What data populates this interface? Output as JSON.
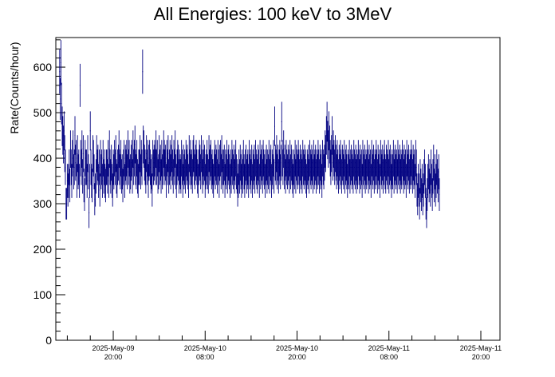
{
  "chart_data": {
    "type": "scatter",
    "style": "error-bars",
    "title": "All Energies:  100 keV to 3MeV",
    "xlabel": "",
    "ylabel": "Rate(Counts/hour)",
    "ylim": [
      0,
      665
    ],
    "yticks": [
      0,
      100,
      200,
      300,
      400,
      500,
      600
    ],
    "xlim": [
      "2025-May-09 12:30",
      "2025-May-11 22:30"
    ],
    "xticks": [
      {
        "time": "2025-May-09 20:00",
        "date": "2025-May-09",
        "clock": "20:00"
      },
      {
        "time": "2025-May-10 08:00",
        "date": "2025-May-10",
        "clock": "08:00"
      },
      {
        "time": "2025-May-10 20:00",
        "date": "2025-May-10",
        "clock": "20:00"
      },
      {
        "time": "2025-May-11 08:00",
        "date": "2025-May-11",
        "clock": "08:00"
      },
      {
        "time": "2025-May-11 20:00",
        "date": "2025-May-11",
        "clock": "20:00"
      }
    ],
    "series_color": "#000080",
    "series": [
      {
        "x_start": "2025-May-09 13:00",
        "x_step_minutes": 5,
        "values": [
          590,
          530,
          610,
          520,
          470,
          450,
          430,
          460,
          410,
          380,
          300,
          300,
          350,
          330,
          350,
          380,
          340,
          420,
          380,
          350,
          400,
          420,
          370,
          380,
          450,
          390,
          400,
          350,
          410,
          370,
          380,
          350,
          560,
          400,
          380,
          420,
          360,
          410,
          340,
          320,
          400,
          380,
          380,
          350,
          410,
          370,
          280,
          350,
          460,
          380,
          350,
          340,
          410,
          400,
          370,
          310,
          330,
          360,
          410,
          380,
          390,
          350,
          380,
          330,
          400,
          370,
          380,
          350,
          400,
          360,
          380,
          350,
          340,
          380,
          380,
          360,
          400,
          350,
          420,
          380,
          360,
          390,
          350,
          330,
          380,
          370,
          400,
          380,
          410,
          360,
          350,
          380,
          390,
          420,
          380,
          370,
          400,
          360,
          370,
          340,
          380,
          400,
          350,
          390,
          380,
          400,
          370,
          420,
          380,
          400,
          360,
          370,
          390,
          400,
          360,
          420,
          380,
          400,
          430,
          380,
          370,
          400,
          360,
          350,
          380,
          380,
          410,
          370,
          400,
          380,
          590,
          430,
          420,
          390,
          380,
          360,
          410,
          380,
          400,
          350,
          390,
          400,
          380,
          360,
          370,
          330,
          400,
          380,
          390,
          400,
          380,
          420,
          380,
          400,
          360,
          370,
          410,
          380,
          390,
          360,
          400,
          370,
          380,
          420,
          400,
          380,
          390,
          350,
          400,
          380,
          410,
          360,
          380,
          400,
          370,
          390,
          410,
          380,
          360,
          400,
          380,
          420,
          370,
          350,
          380,
          400,
          390,
          360,
          380,
          370,
          360,
          400,
          380,
          350,
          390,
          370,
          380,
          360,
          400,
          380,
          390,
          370,
          350,
          410,
          380,
          400,
          370,
          380,
          360,
          400,
          410,
          380,
          370,
          390,
          400,
          380,
          360,
          350,
          380,
          400,
          390,
          370,
          410,
          380,
          360,
          400,
          380,
          390,
          350,
          370,
          380,
          400,
          370,
          360,
          410,
          380,
          390,
          400,
          370,
          380,
          360,
          350,
          380,
          400,
          370,
          390,
          380,
          360,
          400,
          380,
          350,
          390,
          400,
          370,
          410,
          380,
          360,
          380,
          390,
          350,
          380,
          370,
          400,
          360,
          380,
          390,
          370,
          350,
          380,
          360,
          400,
          380,
          370,
          390,
          360,
          380,
          400,
          370,
          360,
          330,
          350,
          380,
          360,
          390,
          370,
          350,
          380,
          360,
          400,
          370,
          350,
          380,
          390,
          360,
          370,
          380,
          350,
          400,
          370,
          380,
          360,
          390,
          350,
          380,
          370,
          390,
          360,
          400,
          380,
          370,
          360,
          390,
          380,
          350,
          400,
          370,
          380,
          390,
          360,
          400,
          380,
          370,
          350,
          380,
          390,
          360,
          380,
          370,
          400,
          360,
          380,
          390,
          350,
          380,
          370,
          400,
          360,
          470,
          390,
          380,
          410,
          370,
          390,
          360,
          380,
          400,
          370,
          390,
          480,
          400,
          380,
          420,
          370,
          390,
          360,
          400,
          380,
          370,
          390,
          380,
          360,
          400,
          370,
          390,
          380,
          360,
          350,
          380,
          370,
          400,
          360,
          390,
          380,
          370,
          400,
          380,
          360,
          390,
          370,
          380,
          360,
          400,
          380,
          370,
          390,
          380,
          360,
          350,
          380,
          370,
          390,
          360,
          400,
          380,
          370,
          390,
          380,
          360,
          400,
          370,
          380,
          390,
          360,
          380,
          370,
          400,
          380,
          360,
          390,
          370,
          380,
          350,
          400,
          380,
          370,
          390,
          420,
          410,
          450,
          480,
          440,
          420,
          460,
          430,
          400,
          380,
          410,
          450,
          390,
          420,
          400,
          380,
          410,
          390,
          370,
          400,
          380,
          360,
          390,
          370,
          400,
          380,
          360,
          390,
          380,
          370,
          400,
          360,
          380,
          390,
          370,
          350,
          380,
          370,
          400,
          360,
          380,
          390,
          370,
          380,
          360,
          400,
          380,
          370,
          390,
          360,
          380,
          370,
          400,
          380,
          360,
          390,
          370,
          380,
          350,
          400,
          380,
          370,
          390,
          360,
          380,
          370,
          400,
          380,
          360,
          390,
          370,
          380,
          350,
          400,
          380,
          370,
          390,
          360,
          380,
          370,
          400,
          380,
          360,
          390,
          370,
          380,
          350,
          400,
          380,
          370,
          390,
          360,
          380,
          400,
          370,
          360,
          390,
          380,
          370,
          400,
          360,
          380,
          390,
          370,
          350,
          380,
          370,
          400,
          360,
          380,
          390,
          370,
          380,
          360,
          400,
          380,
          370,
          390,
          360,
          380,
          370,
          400,
          380,
          360,
          390,
          370,
          380,
          350,
          400,
          380,
          370,
          390,
          360,
          380,
          370,
          400,
          380,
          360,
          390,
          370,
          380,
          350,
          400,
          380,
          330,
          310,
          350,
          330,
          300,
          360,
          340,
          320,
          350,
          310,
          330,
          360,
          380,
          350,
          300,
          280,
          320,
          350,
          370,
          340,
          360,
          330,
          380,
          350,
          320,
          360,
          390,
          340,
          370,
          330,
          350,
          380,
          360,
          340,
          370,
          320
        ]
      }
    ]
  }
}
